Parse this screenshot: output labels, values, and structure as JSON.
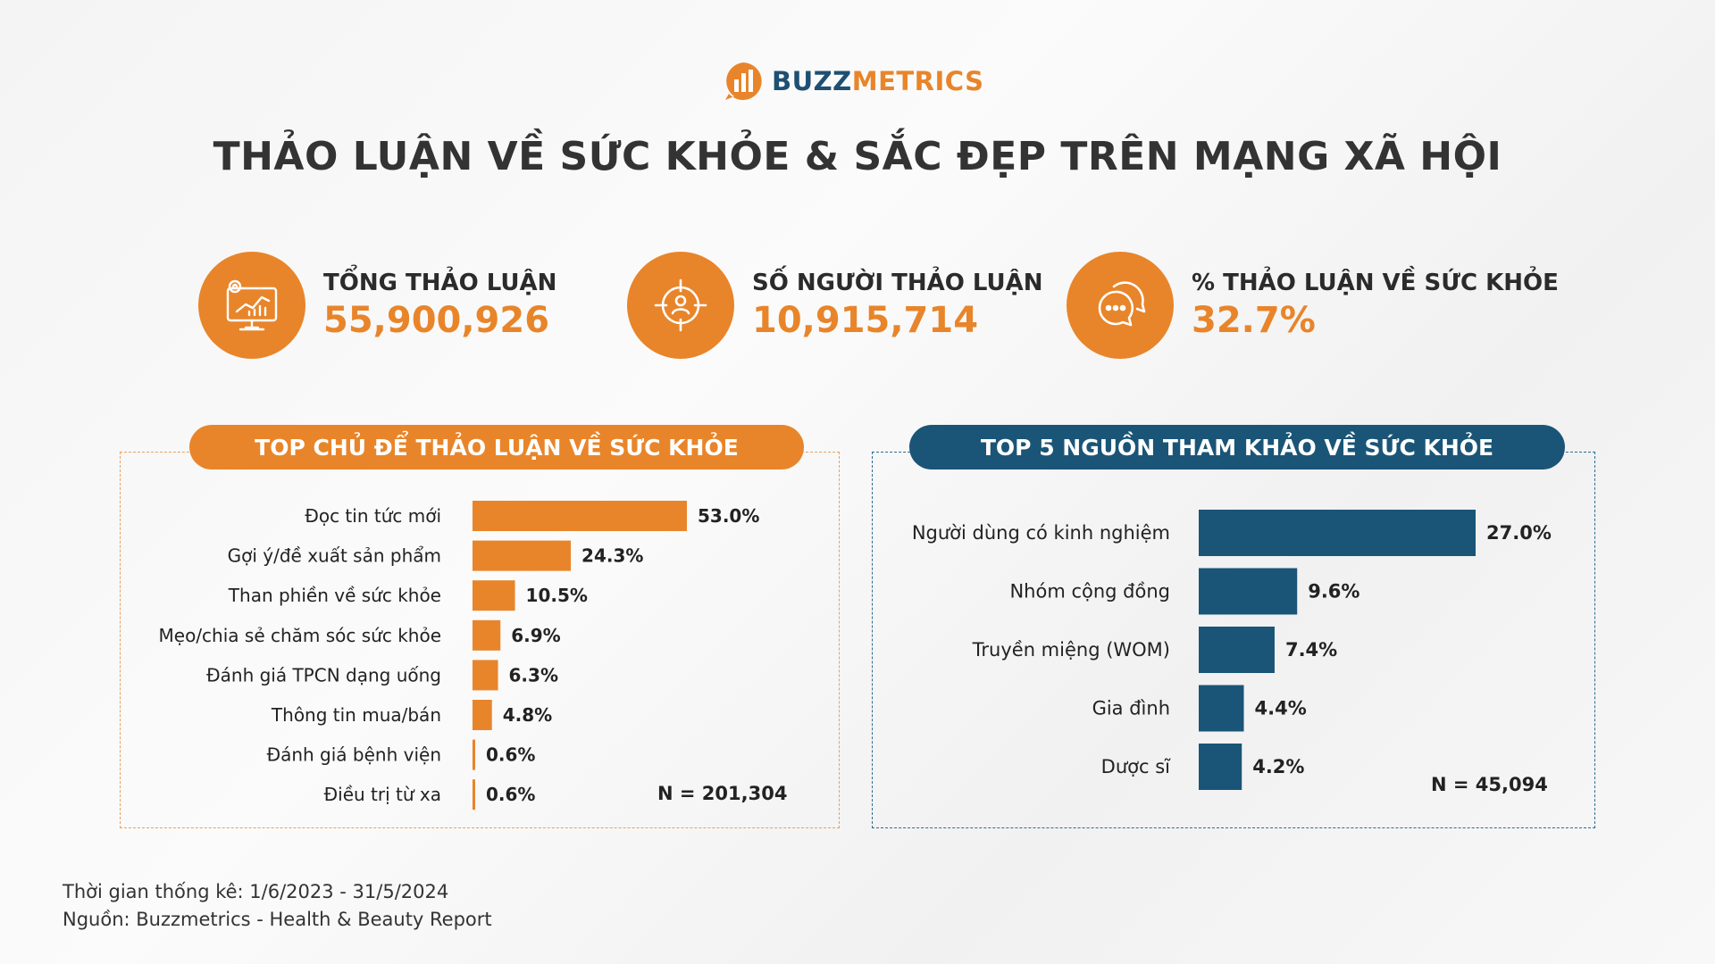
{
  "brand": {
    "part1": "BUZZ",
    "part2": "METRICS"
  },
  "title": "THẢO LUẬN VỀ SỨC KHỎE & SẮC ĐẸP TRÊN MẠNG XÃ HỘI",
  "stats": [
    {
      "label": "TỔNG THẢO LUẬN",
      "value": "55,900,926",
      "icon": "monitor-analytics-icon"
    },
    {
      "label": "SỐ NGƯỜI THẢO LUẬN",
      "value": "10,915,714",
      "icon": "target-user-icon"
    },
    {
      "label": "% THẢO LUẬN VỀ SỨC KHỎE",
      "value": "32.7%",
      "icon": "chat-bubbles-icon"
    }
  ],
  "colors": {
    "orange": "#e8852a",
    "navy": "#1a5577",
    "text": "#2b2b2b"
  },
  "chart_data": [
    {
      "type": "bar",
      "orientation": "horizontal",
      "title": "TOP CHỦ ĐỂ THẢO LUẬN VỀ SỨC KHỎE",
      "categories": [
        "Đọc tin tức mới",
        "Gợi ý/đề xuất sản phẩm",
        "Than phiền về sức khỏe",
        "Mẹo/chia sẻ chăm sóc sức khỏe",
        "Đánh giá TPCN dạng uống",
        "Thông tin mua/bán",
        "Đánh giá bệnh viện",
        "Điều trị từ xa"
      ],
      "values": [
        53.0,
        24.3,
        10.5,
        6.9,
        6.3,
        4.8,
        0.6,
        0.6
      ],
      "value_labels": [
        "53.0%",
        "24.3%",
        "10.5%",
        "6.9%",
        "6.3%",
        "4.8%",
        "0.6%",
        "0.6%"
      ],
      "note": "N = 201,304",
      "color": "#e8852a"
    },
    {
      "type": "bar",
      "orientation": "horizontal",
      "title": "TOP 5 NGUỒN THAM KHẢO VỀ  SỨC KHỎE",
      "categories": [
        "Người dùng có kinh nghiệm",
        "Nhóm cộng đồng",
        "Truyền miệng (WOM)",
        "Gia đình",
        "Dược sĩ"
      ],
      "values": [
        27.0,
        9.6,
        7.4,
        4.4,
        4.2
      ],
      "value_labels": [
        "27.0%",
        "9.6%",
        "7.4%",
        "4.4%",
        "4.2%"
      ],
      "note": "N = 45,094",
      "color": "#1a5577"
    }
  ],
  "footer": {
    "period": "Thời gian thống kê: 1/6/2023 - 31/5/2024",
    "source": "Nguồn: Buzzmetrics - Health & Beauty Report"
  }
}
